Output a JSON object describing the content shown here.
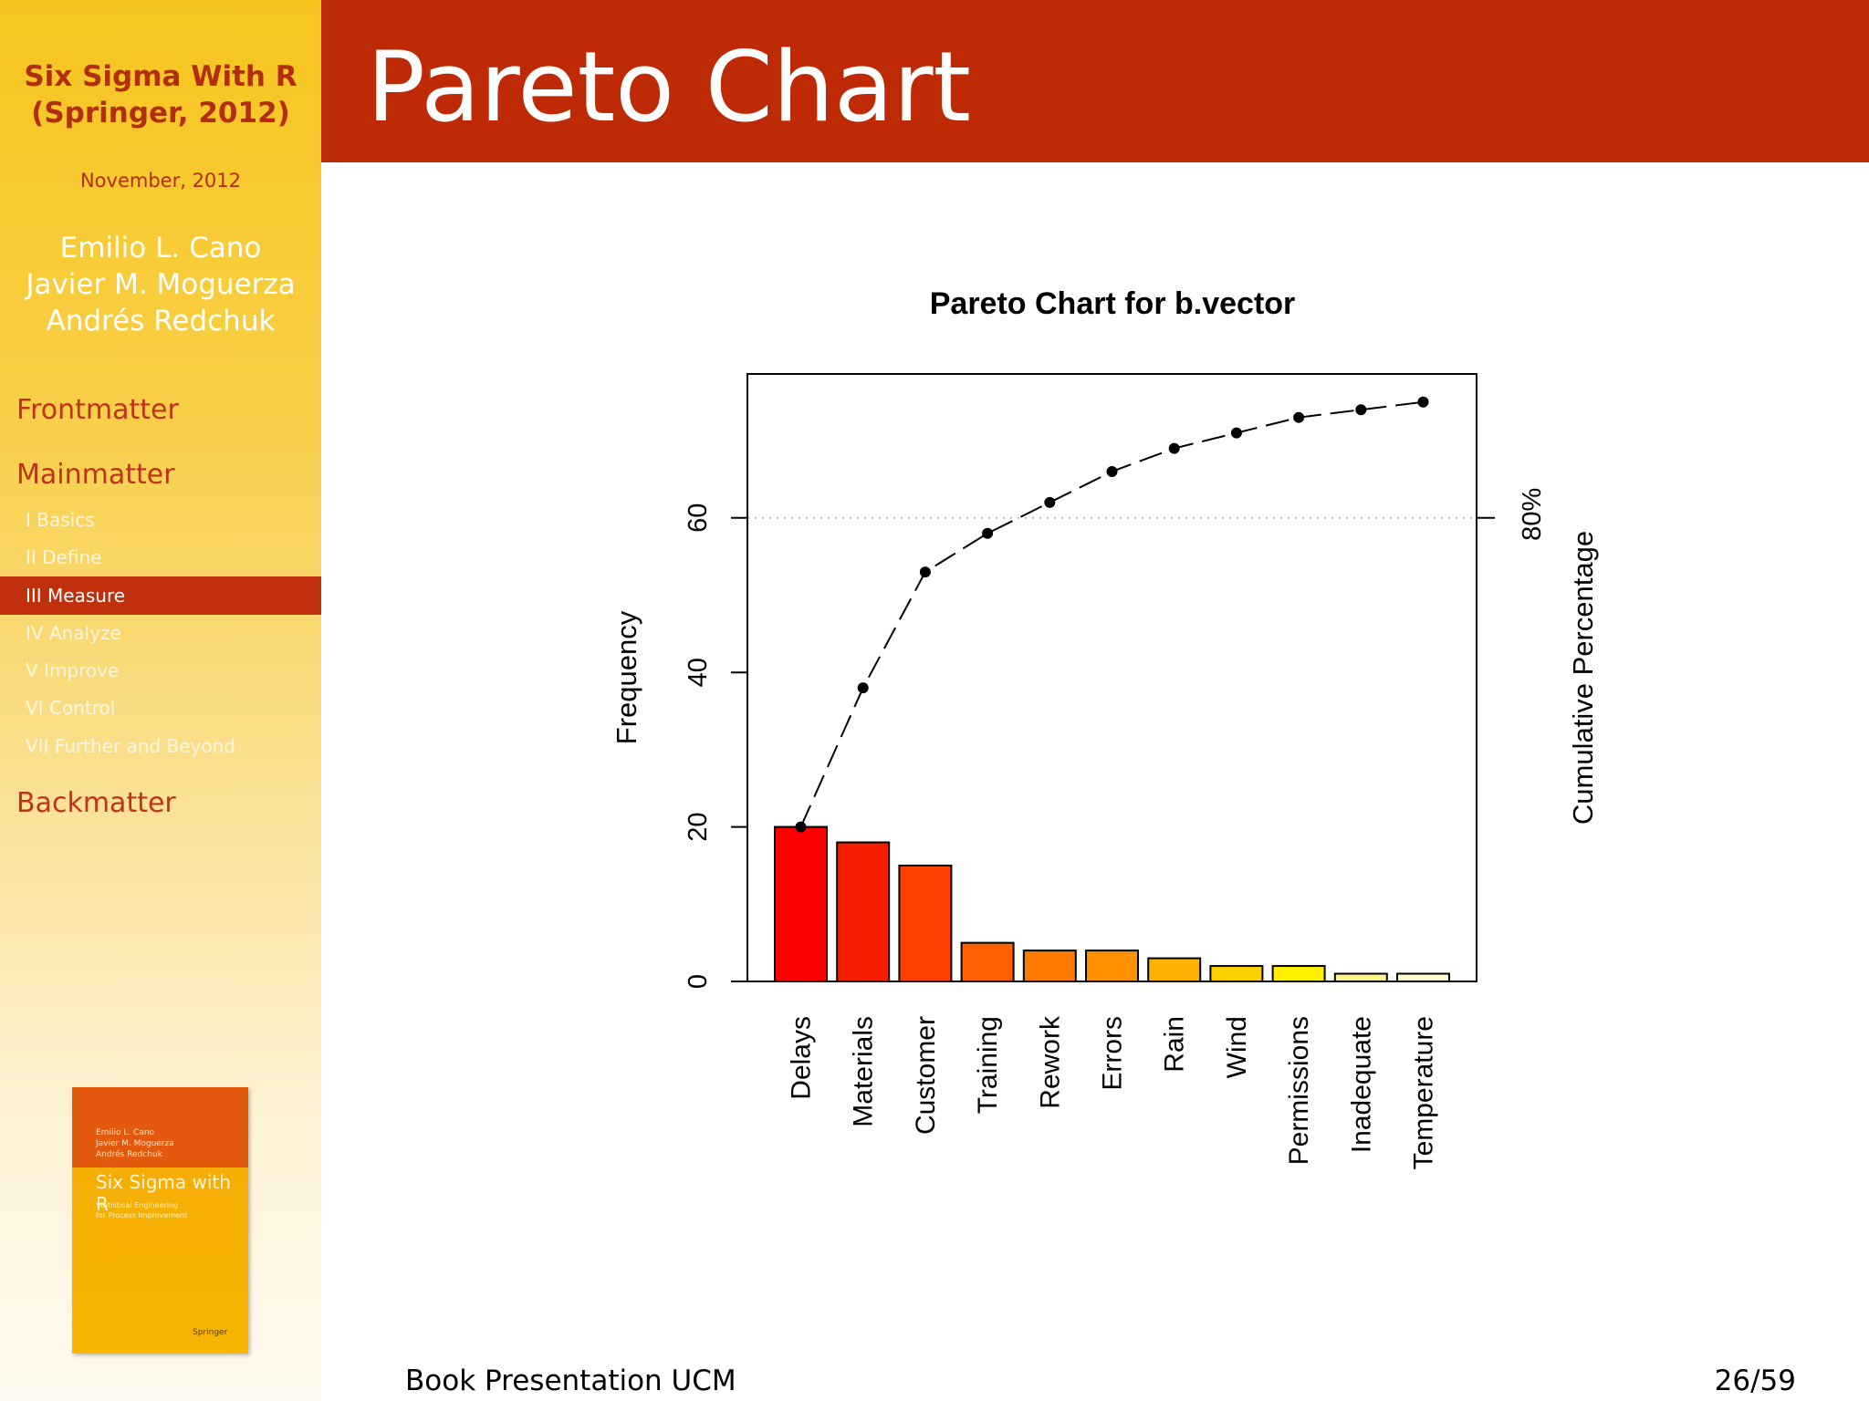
{
  "sidebar": {
    "title_line1": "Six Sigma With R",
    "title_line2": "(Springer, 2012)",
    "date": "November, 2012",
    "authors": [
      "Emilio L. Cano",
      "Javier M. Moguerza",
      "Andrés Redchuk"
    ],
    "sections": {
      "frontmatter": "Frontmatter",
      "mainmatter": "Mainmatter",
      "backmatter": "Backmatter"
    },
    "parts": [
      "I Basics",
      "II Define",
      "III Measure",
      "IV Analyze",
      "V Improve",
      "VI Control",
      "VII Further and Beyond"
    ],
    "cover": {
      "authors": [
        "Emilio L. Cano",
        "Javier M. Moguerza",
        "Andrés Redchuk"
      ],
      "title": "Six Sigma with R",
      "subtitle_line1": "Statistical Engineering",
      "subtitle_line2": "for Process Improvement",
      "publisher": "Springer"
    }
  },
  "header": {
    "title": "Pareto Chart"
  },
  "footer": {
    "left": "Book Presentation UCM",
    "right": "26/59"
  },
  "chart_data": {
    "type": "bar",
    "title": "Pareto Chart for b.vector",
    "xlabel": "",
    "ylabel": "Frequency",
    "ylabel_right": "Cumulative Percentage",
    "right_axis_tick": "80%",
    "categories": [
      "Delays",
      "Materials",
      "Customer",
      "Training",
      "Rework",
      "Errors",
      "Rain",
      "Wind",
      "Permissions",
      "Inadequate",
      "Temperature"
    ],
    "values": [
      20,
      18,
      15,
      5,
      4,
      4,
      3,
      2,
      2,
      1,
      1
    ],
    "cumulative": [
      20,
      38,
      53,
      58,
      62,
      66,
      69,
      71,
      73,
      74,
      75
    ],
    "yticks": [
      0,
      20,
      40,
      60
    ],
    "ylim": [
      0,
      75
    ],
    "reference_line": 60,
    "bar_colors": [
      "#ff0000",
      "#f51e00",
      "#ff4000",
      "#ff6000",
      "#ff7a00",
      "#ff9000",
      "#ffb000",
      "#ffcf00",
      "#ffef00",
      "#fff48a",
      "#fff9d0"
    ],
    "grid": false,
    "legend": "none"
  }
}
